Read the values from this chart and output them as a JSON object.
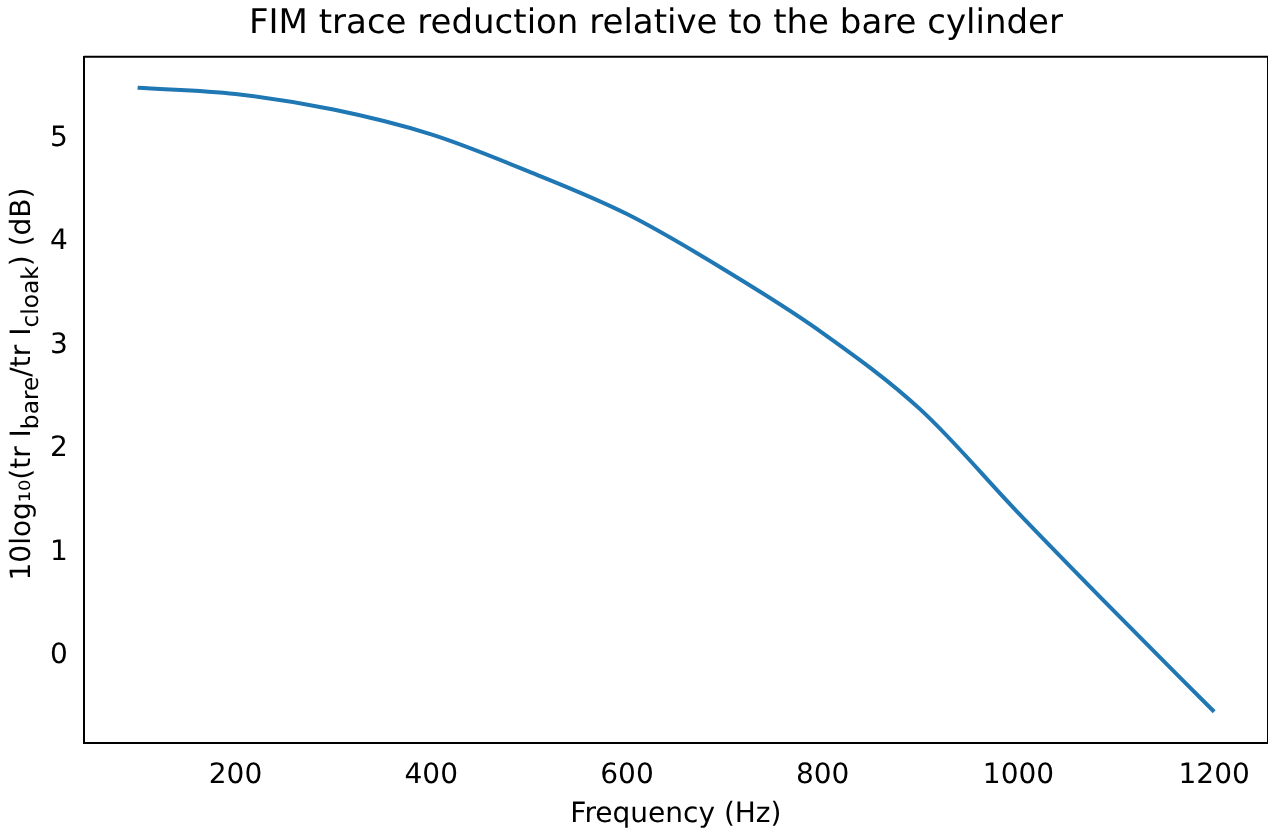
{
  "chart_data": {
    "type": "line",
    "title": "FIM trace reduction relative to the bare cylinder",
    "xlabel": "Frequency (Hz)",
    "ylabel": "10log₁₀(tr I$_{bare}$/tr I$_{cloak}$) (dB)",
    "x": [
      100,
      200,
      300,
      400,
      500,
      600,
      700,
      800,
      900,
      1000,
      1100,
      1200
    ],
    "series": [
      {
        "color": "#1f77b4",
        "values": [
          5.49,
          5.43,
          5.28,
          5.04,
          4.68,
          4.27,
          3.73,
          3.12,
          2.38,
          1.38,
          0.41,
          -0.54
        ]
      }
    ],
    "xlim": [
      45,
      1255
    ],
    "xticks": [
      200,
      400,
      600,
      800,
      1000,
      1200
    ],
    "ylim": [
      -0.84,
      5.79
    ],
    "yticks": [
      0,
      1,
      2,
      3,
      4,
      5
    ],
    "grid": false,
    "legend": false,
    "marker": "none",
    "line_style": "solid"
  }
}
